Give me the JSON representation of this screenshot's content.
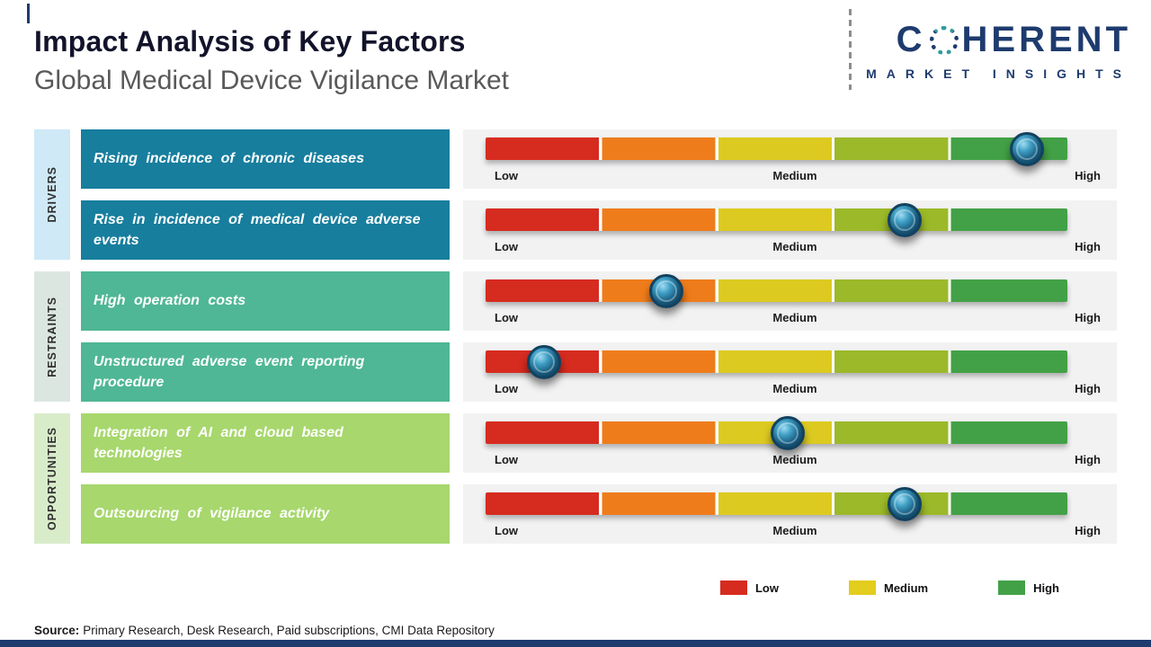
{
  "header": {
    "title": "Impact Analysis of Key Factors",
    "subtitle": "Global Medical Device Vigilance Market",
    "logo": {
      "part1": "C",
      "part2": "HERENT",
      "tagline": "MARKET INSIGHTS",
      "color": "#1e3b6e",
      "o_dot_color": "#2f9b9f"
    }
  },
  "groups": [
    {
      "label": "DRIVERS",
      "label_bg": "#cfe9f6",
      "box_color": "#177e9e",
      "rows": [
        {
          "factor": "Rising incidence of chronic diseases",
          "value_pct": 93
        },
        {
          "factor": "Rise in incidence of medical device adverse events",
          "value_pct": 72
        }
      ]
    },
    {
      "label": "RESTRAINTS",
      "label_bg": "#dce6e1",
      "box_color": "#4fb795",
      "rows": [
        {
          "factor": "High operation costs",
          "value_pct": 31
        },
        {
          "factor": "Unstructured adverse event reporting procedure",
          "value_pct": 10
        }
      ]
    },
    {
      "label": "OPPORTUNITIES",
      "label_bg": "#d9ecca",
      "box_color": "#a7d76d",
      "rows": [
        {
          "factor": "Integration of AI and cloud based technologies",
          "value_pct": 52
        },
        {
          "factor": "Outsourcing of vigilance activity",
          "value_pct": 72
        }
      ]
    }
  ],
  "gauge": {
    "segment_colors": [
      "#d62b1f",
      "#ef7c1b",
      "#ddca20",
      "#9cb929",
      "#42a146"
    ],
    "scale_labels": {
      "low": "Low",
      "medium": "Medium",
      "high": "High"
    }
  },
  "legend": {
    "items": [
      {
        "label": "Low",
        "color": "#d62b1f"
      },
      {
        "label": "Medium",
        "color": "#e3cd1d"
      },
      {
        "label": "High",
        "color": "#42a146"
      }
    ]
  },
  "source": {
    "label": "Source:",
    "text": "Primary Research, Desk Research, Paid subscriptions, CMI Data Repository"
  },
  "chart_data": {
    "type": "bar",
    "title": "Impact Analysis of Key Factors",
    "subtitle": "Global Medical Device Vigilance Market",
    "scale": [
      "Low",
      "Medium",
      "High"
    ],
    "xlim": [
      0,
      100
    ],
    "categories": [
      "Rising incidence of chronic diseases",
      "Rise in incidence of medical device adverse events",
      "High operation costs",
      "Unstructured adverse event reporting procedure",
      "Integration of AI and cloud based technologies",
      "Outsourcing of vigilance activity"
    ],
    "category_groups": [
      "Drivers",
      "Drivers",
      "Restraints",
      "Restraints",
      "Opportunities",
      "Opportunities"
    ],
    "values_pct_of_scale": [
      93,
      72,
      31,
      10,
      52,
      72
    ],
    "impact_levels": [
      "High",
      "Medium-High",
      "Low-Medium",
      "Low",
      "Medium",
      "Medium-High"
    ],
    "legend_position": "bottom-right",
    "grid": false
  }
}
